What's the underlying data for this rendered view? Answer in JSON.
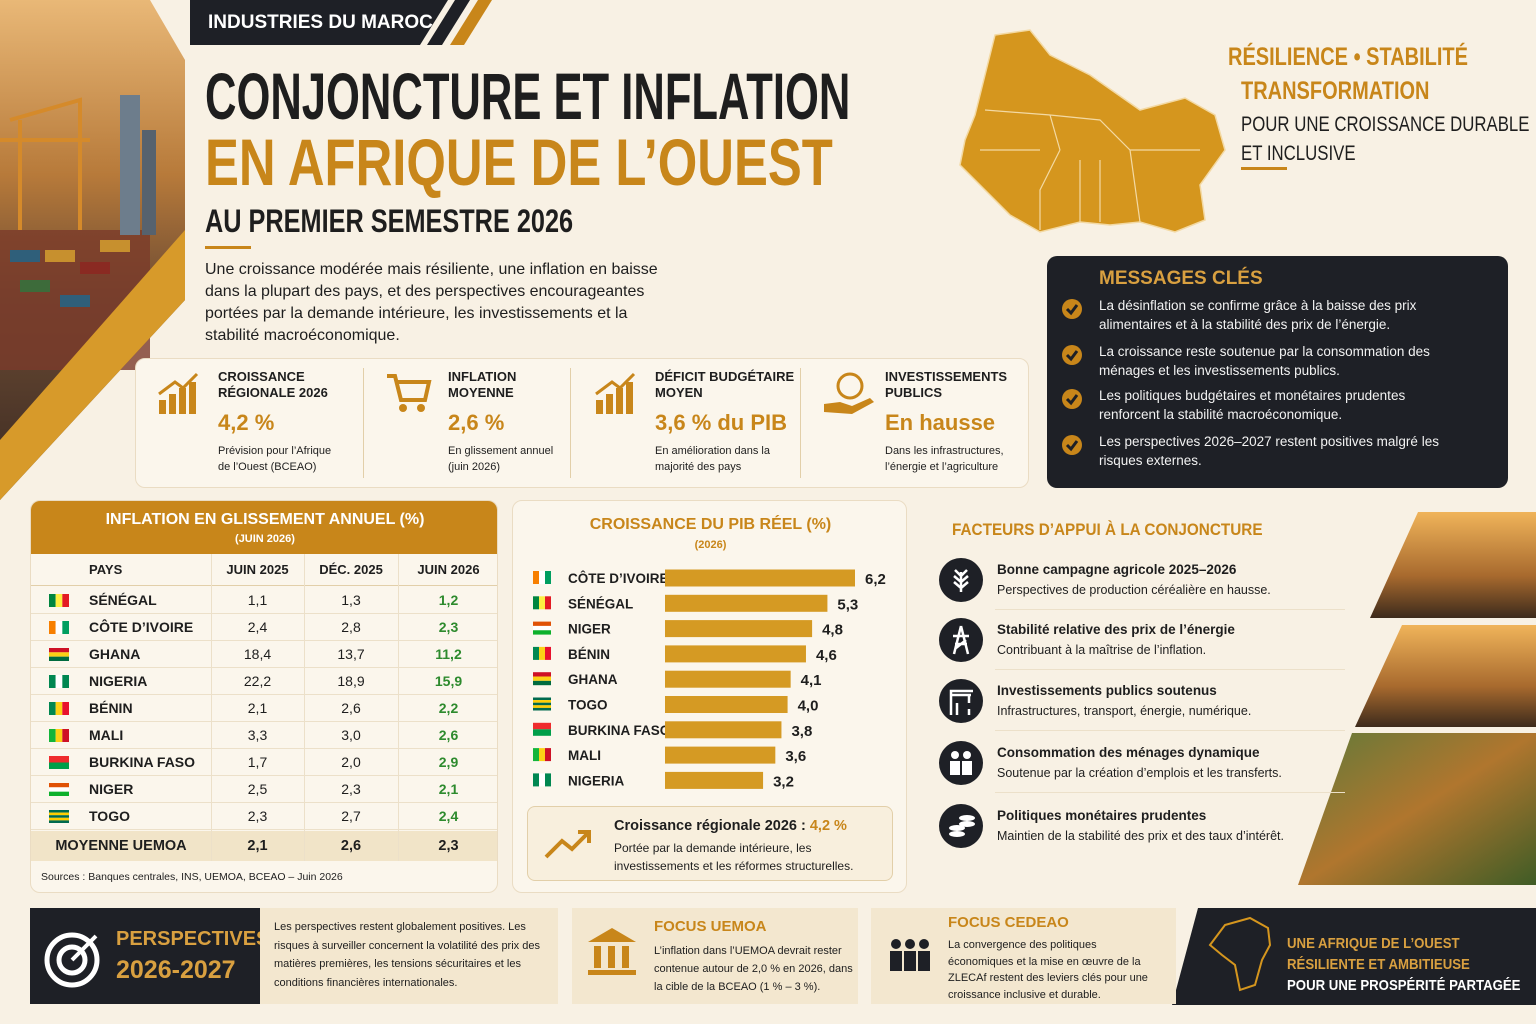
{
  "header": {
    "tag": "INDUSTRIES DU MAROC",
    "title_1": "CONJONCTURE ET INFLATION",
    "title_2": "EN AFRIQUE DE L’OUEST",
    "subtitle": "AU PREMIER SEMESTRE 2026",
    "intro": "Une croissance modérée mais résiliente, une inflation en baisse dans la plupart des pays, et des perspectives encourageantes portées par la demande intérieure, les investissements et la stabilité macroéconomique."
  },
  "tagline": {
    "line_1": "RÉSILIENCE • STABILITÉ",
    "line_2": "TRANSFORMATION",
    "line_3": "POUR UNE CROISSANCE DURABLE",
    "line_4": "ET INCLUSIVE"
  },
  "kpis": [
    {
      "label": "CROISSANCE RÉGIONALE 2026",
      "value": "4,2 %",
      "note": "Prévision pour l’Afrique de l’Ouest (BCEAO)"
    },
    {
      "label": "INFLATION MOYENNE",
      "value": "2,6 %",
      "note": "En glissement annuel (juin 2026)"
    },
    {
      "label": "DÉFICIT BUDGÉTAIRE MOYEN",
      "value": "3,6 % du PIB",
      "note": "En amélioration dans la majorité des pays"
    },
    {
      "label": "INVESTISSEMENTS PUBLICS",
      "value": "En hausse",
      "note": "Dans les infrastructures, l’énergie et l’agriculture"
    }
  ],
  "messages": {
    "title": "MESSAGES CLÉS",
    "items": [
      "La désinflation se confirme grâce à la baisse des prix alimentaires et à la stabilité des prix de l’énergie.",
      "La croissance reste soutenue par la consommation des ménages et les investissements publics.",
      "Les politiques budgétaires et monétaires prudentes renforcent la stabilité macroéconomique.",
      "Les perspectives 2026–2027 restent positives malgré les risques externes."
    ]
  },
  "inflation_table": {
    "title": "INFLATION EN GLISSEMENT ANNUEL (%)",
    "subtitle": "(JUIN 2026)",
    "columns": [
      "PAYS",
      "JUIN 2025",
      "DÉC. 2025",
      "JUIN 2026"
    ],
    "rows": [
      {
        "cells": [
          "SÉNÉGAL",
          "1,1",
          "1,3",
          "1,2"
        ],
        "flag": {
          "dir": "v",
          "colors": [
            "#00853f",
            "#fdef42",
            "#e31b23"
          ]
        }
      },
      {
        "cells": [
          "CÔTE D’IVOIRE",
          "2,4",
          "2,8",
          "2,3"
        ],
        "flag": {
          "dir": "v",
          "colors": [
            "#f77f00",
            "#ffffff",
            "#009e60"
          ]
        }
      },
      {
        "cells": [
          "GHANA",
          "18,4",
          "13,7",
          "11,2"
        ],
        "flag": {
          "dir": "h",
          "colors": [
            "#ce1126",
            "#fcd116",
            "#006b3f"
          ]
        }
      },
      {
        "cells": [
          "NIGERIA",
          "22,2",
          "18,9",
          "15,9"
        ],
        "flag": {
          "dir": "v",
          "colors": [
            "#008751",
            "#ffffff",
            "#008751"
          ]
        }
      },
      {
        "cells": [
          "BÉNIN",
          "2,1",
          "2,6",
          "2,2"
        ],
        "flag": {
          "dir": "v",
          "colors": [
            "#008751",
            "#fcd116",
            "#e8112d"
          ]
        }
      },
      {
        "cells": [
          "MALI",
          "3,3",
          "3,0",
          "2,6"
        ],
        "flag": {
          "dir": "v",
          "colors": [
            "#14b53a",
            "#fcd116",
            "#ce1126"
          ]
        }
      },
      {
        "cells": [
          "BURKINA FASO",
          "1,7",
          "2,0",
          "2,9"
        ],
        "flag": {
          "dir": "h",
          "colors": [
            "#ef2b2d",
            "#009e49"
          ]
        }
      },
      {
        "cells": [
          "NIGER",
          "2,5",
          "2,3",
          "2,1"
        ],
        "flag": {
          "dir": "h",
          "colors": [
            "#e05206",
            "#ffffff",
            "#0db02b"
          ]
        }
      },
      {
        "cells": [
          "TOGO",
          "2,3",
          "2,7",
          "2,4"
        ],
        "flag": {
          "dir": "h",
          "colors": [
            "#006a4e",
            "#ffce00",
            "#006a4e",
            "#ffce00",
            "#006a4e"
          ]
        }
      }
    ],
    "total": [
      "MOYENNE UEMOA",
      "2,1",
      "2,6",
      "2,3"
    ],
    "source": "Sources : Banques centrales, INS, UEMOA, BCEAO – Juin 2026"
  },
  "chart_data": {
    "type": "bar",
    "orientation": "horizontal",
    "title": "CROISSANCE DU PIB RÉEL (%)",
    "subtitle": "(2026)",
    "categories": [
      "CÔTE D’IVOIRE",
      "SÉNÉGAL",
      "NIGER",
      "BÉNIN",
      "GHANA",
      "TOGO",
      "BURKINA FASO",
      "MALI",
      "NIGERIA"
    ],
    "values": [
      6.2,
      5.3,
      4.8,
      4.6,
      4.1,
      4.0,
      3.8,
      3.6,
      3.2
    ],
    "value_labels": [
      "6,2",
      "5,3",
      "4,8",
      "4,6",
      "4,1",
      "4,0",
      "3,8",
      "3,6",
      "3,2"
    ],
    "color": "#d59a23",
    "flags": [
      {
        "dir": "v",
        "colors": [
          "#f77f00",
          "#ffffff",
          "#009e60"
        ]
      },
      {
        "dir": "v",
        "colors": [
          "#00853f",
          "#fdef42",
          "#e31b23"
        ]
      },
      {
        "dir": "h",
        "colors": [
          "#e05206",
          "#ffffff",
          "#0db02b"
        ]
      },
      {
        "dir": "v",
        "colors": [
          "#008751",
          "#fcd116",
          "#e8112d"
        ]
      },
      {
        "dir": "h",
        "colors": [
          "#ce1126",
          "#fcd116",
          "#006b3f"
        ]
      },
      {
        "dir": "h",
        "colors": [
          "#006a4e",
          "#ffce00",
          "#006a4e",
          "#ffce00",
          "#006a4e"
        ]
      },
      {
        "dir": "h",
        "colors": [
          "#ef2b2d",
          "#009e49"
        ]
      },
      {
        "dir": "v",
        "colors": [
          "#14b53a",
          "#fcd116",
          "#ce1126"
        ]
      },
      {
        "dir": "v",
        "colors": [
          "#008751",
          "#ffffff",
          "#008751"
        ]
      }
    ]
  },
  "callout": {
    "title": "Croissance régionale 2026 :",
    "value": "4,2 %",
    "text": "Portée par la demande intérieure, les investissements et les réformes structurelles."
  },
  "factors": {
    "title": "FACTEURS D’APPUI À LA CONJONCTURE",
    "items": [
      {
        "title": "Bonne campagne agricole 2025–2026",
        "text": "Perspectives de production céréalière en hausse."
      },
      {
        "title": "Stabilité relative des prix de l’énergie",
        "text": "Contribuant à la maîtrise de l’inflation."
      },
      {
        "title": "Investissements publics soutenus",
        "text": "Infrastructures, transport, énergie, numérique."
      },
      {
        "title": "Consommation des ménages dynamique",
        "text": "Soutenue par la création d’emplois et les transferts."
      },
      {
        "title": "Politiques monétaires prudentes",
        "text": "Maintien de la stabilité des prix et des taux d’intérêt."
      }
    ]
  },
  "outlook": {
    "title": "PERSPECTIVES",
    "years": "2026-2027",
    "text": "Les perspectives restent globalement positives. Les risques à surveiller concernent la volatilité des prix des matières premières, les tensions sécuritaires et les conditions financières internationales."
  },
  "focus_uemoa": {
    "title": "FOCUS UEMOA",
    "text": "L’inflation dans l’UEMOA devrait rester contenue autour de 2,0 % en 2026, dans la cible de la BCEAO (1 % – 3 %)."
  },
  "focus_cedeao": {
    "title": "FOCUS CEDEAO",
    "text": "La convergence des politiques économiques et la mise en œuvre de la ZLECAf restent des leviers clés pour une croissance inclusive et durable."
  },
  "banner": {
    "line_1": "UNE AFRIQUE DE L’OUEST",
    "line_2": "RÉSILIENTE ET AMBITIEUSE",
    "line_3": "POUR UNE PROSPÉRITÉ PARTAGÉE"
  }
}
